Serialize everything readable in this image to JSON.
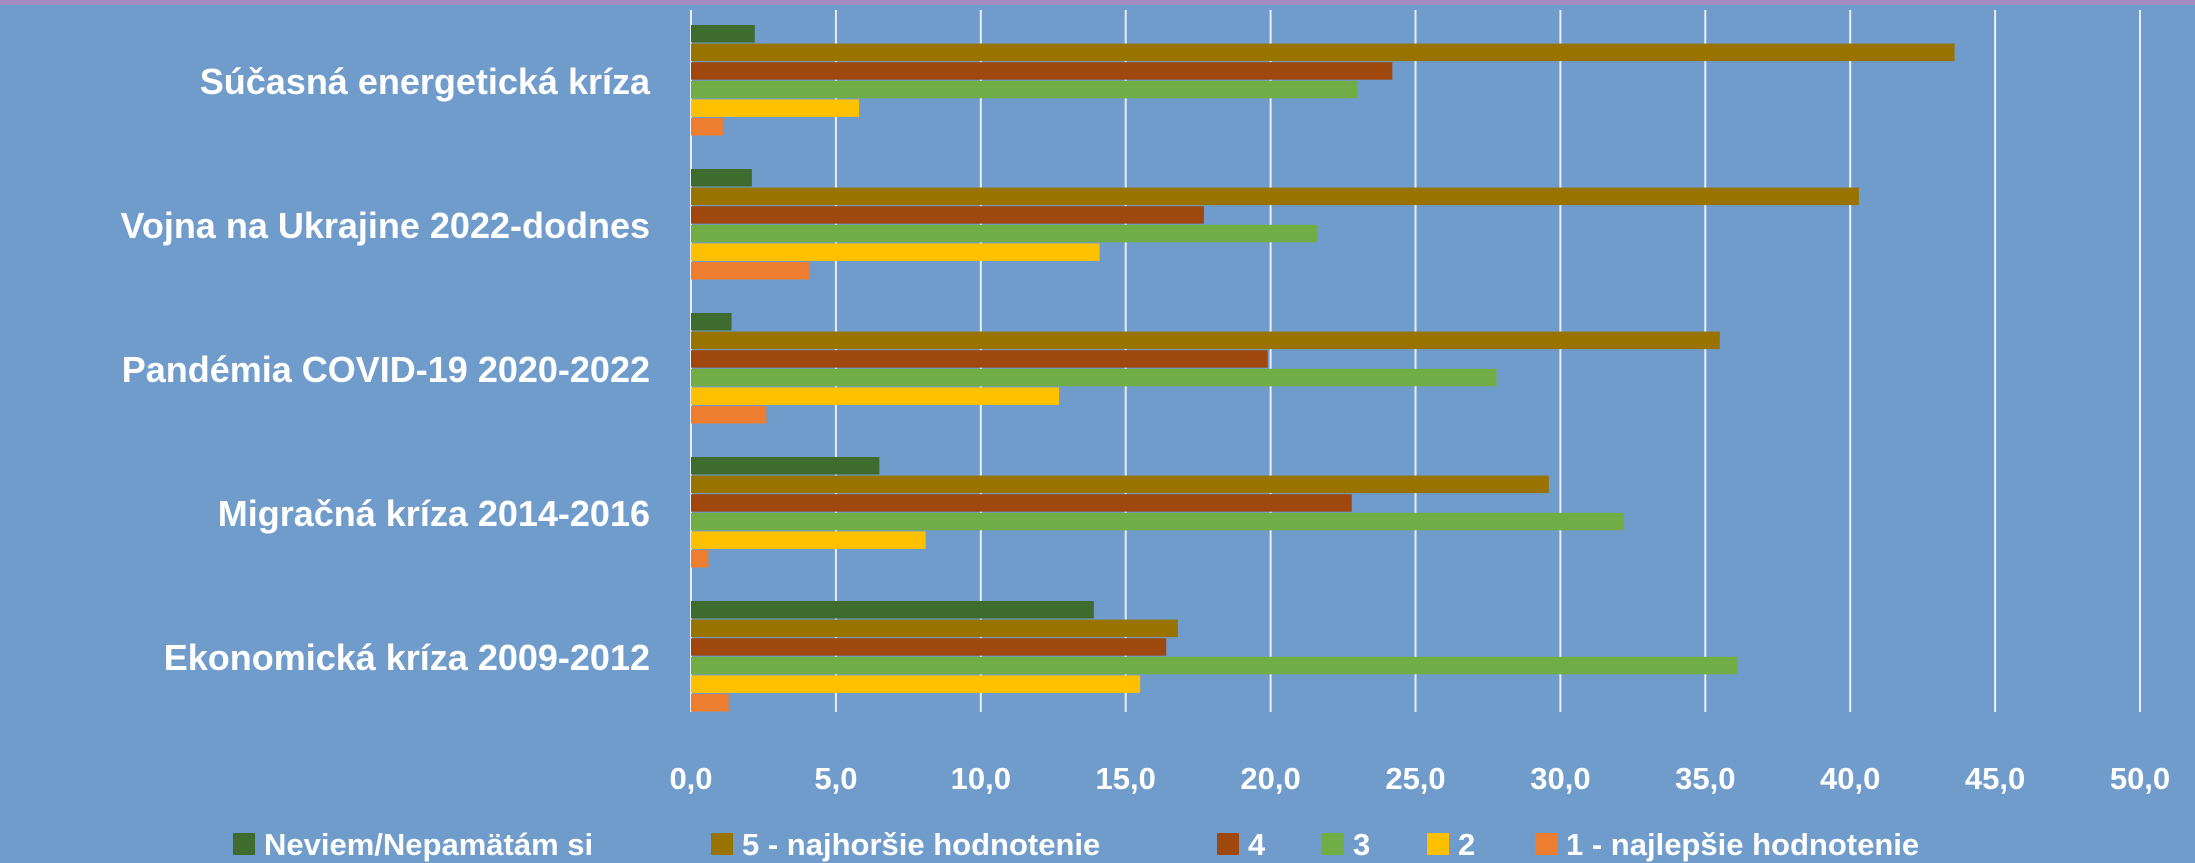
{
  "colors": {
    "background": "#6f9ccb",
    "top_strip": "#a58bbf",
    "gridline": "#e8eef6",
    "text": "#ffffff"
  },
  "chart_data": {
    "type": "bar",
    "orientation": "horizontal",
    "title": "",
    "xlabel": "",
    "ylabel": "",
    "xlim": [
      0,
      50
    ],
    "x_ticks": [
      "0,0",
      "5,0",
      "10,0",
      "15,0",
      "20,0",
      "25,0",
      "30,0",
      "35,0",
      "40,0",
      "45,0",
      "50,0"
    ],
    "grid": "vertical",
    "legend_position": "bottom",
    "categories": [
      "Súčasná energetická kríza",
      "Vojna na Ukrajine 2022-dodnes",
      "Pandémia COVID-19 2020-2022",
      "Migračná kríza 2014-2016",
      "Ekonomická kríza 2009-2012"
    ],
    "series": [
      {
        "name": "Neviem/Nepamätám si",
        "color": "#3e6b2e",
        "values": [
          2.2,
          2.1,
          1.4,
          6.5,
          13.9
        ]
      },
      {
        "name": "5 - najhoršie hodnotenie",
        "color": "#997300",
        "values": [
          43.6,
          40.3,
          35.5,
          29.6,
          16.8
        ]
      },
      {
        "name": "4",
        "color": "#9e480e",
        "values": [
          24.2,
          17.7,
          19.9,
          22.8,
          16.4
        ]
      },
      {
        "name": "3",
        "color": "#70ad47",
        "values": [
          23.0,
          21.6,
          27.8,
          32.2,
          36.1
        ]
      },
      {
        "name": "2",
        "color": "#ffc000",
        "values": [
          5.8,
          14.1,
          12.7,
          8.1,
          15.5
        ]
      },
      {
        "name": "1 - najlepšie hodnotenie",
        "color": "#ed7d31",
        "values": [
          1.1,
          4.1,
          2.6,
          0.6,
          1.3
        ]
      }
    ]
  }
}
